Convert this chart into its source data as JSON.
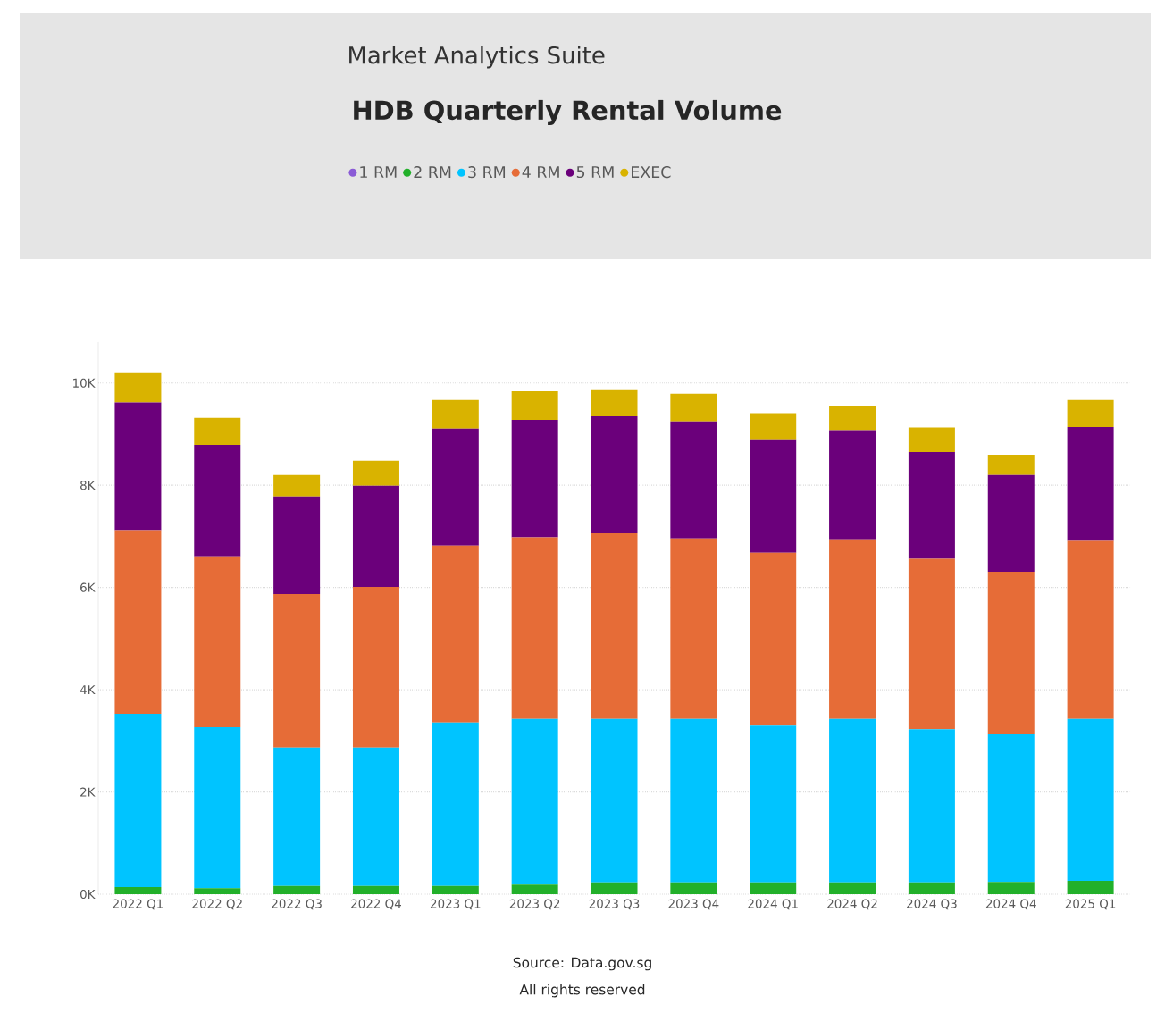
{
  "chart_data": {
    "type": "bar",
    "stacked": true,
    "subtitle": "Market Analytics Suite",
    "title": "HDB Quarterly Rental Volume",
    "categories": [
      "2022 Q1",
      "2022 Q2",
      "2022 Q3",
      "2022 Q4",
      "2023 Q1",
      "2023 Q2",
      "2023 Q3",
      "2023 Q4",
      "2024 Q1",
      "2024 Q2",
      "2024 Q3",
      "2024 Q4",
      "2025 Q1"
    ],
    "series": [
      {
        "name": "1 RM",
        "color": "#8a5bd6",
        "values": [
          0,
          0,
          0,
          0,
          0,
          0,
          0,
          0,
          0,
          0,
          0,
          0,
          0
        ]
      },
      {
        "name": "2 RM",
        "color": "#22b02a",
        "values": [
          140,
          120,
          160,
          160,
          160,
          190,
          230,
          230,
          230,
          230,
          230,
          240,
          260
        ]
      },
      {
        "name": "3 RM",
        "color": "#00c4ff",
        "values": [
          3390,
          3150,
          2710,
          2710,
          3200,
          3240,
          3200,
          3200,
          3070,
          3200,
          3000,
          2890,
          3170
        ]
      },
      {
        "name": "4 RM",
        "color": "#e66c37",
        "values": [
          3590,
          3340,
          3000,
          3140,
          3460,
          3550,
          3630,
          3530,
          3380,
          3510,
          3330,
          3180,
          3480
        ]
      },
      {
        "name": "5 RM",
        "color": "#6b007b",
        "values": [
          2500,
          2180,
          1910,
          1980,
          2290,
          2300,
          2290,
          2290,
          2220,
          2140,
          2090,
          1890,
          2230
        ]
      },
      {
        "name": "EXEC",
        "color": "#d9b300",
        "values": [
          590,
          530,
          420,
          490,
          560,
          560,
          510,
          540,
          510,
          480,
          480,
          400,
          530
        ]
      }
    ],
    "ylim": [
      0,
      10800
    ],
    "yticks": [
      {
        "value": 0,
        "label": "0K"
      },
      {
        "value": 2000,
        "label": "2K"
      },
      {
        "value": 4000,
        "label": "4K"
      },
      {
        "value": 6000,
        "label": "6K"
      },
      {
        "value": 8000,
        "label": "8K"
      },
      {
        "value": 10000,
        "label": "10K"
      }
    ],
    "grid": "y",
    "legend": "top",
    "annotations": [
      "Source: Data.gov.sg",
      "All rights reserved"
    ]
  }
}
